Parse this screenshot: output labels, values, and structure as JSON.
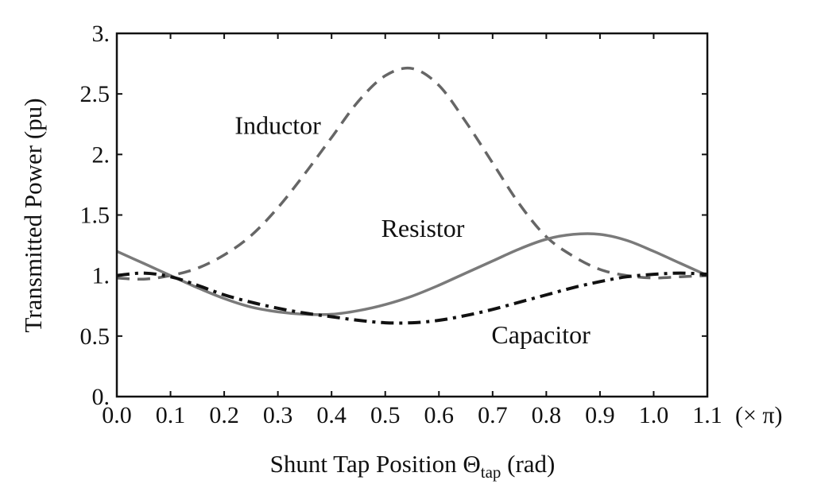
{
  "chart_data": {
    "type": "line",
    "title": "",
    "xlabel": {
      "main": "Shunt Tap Position Θ",
      "sub": "tap",
      "tail": " (rad)"
    },
    "ylabel": "Transmitted Power (pu)",
    "x_unit_label": "(× π)",
    "xlim": [
      0.0,
      1.1
    ],
    "ylim": [
      0.0,
      3.0
    ],
    "x_ticks": [
      0.0,
      0.1,
      0.2,
      0.3,
      0.4,
      0.5,
      0.6,
      0.7,
      0.8,
      0.9,
      1.0,
      1.1
    ],
    "x_tick_labels": [
      "0.0",
      "0.1",
      "0.2",
      "0.3",
      "0.4",
      "0.5",
      "0.6",
      "0.7",
      "0.8",
      "0.9",
      "1.0",
      "1.1"
    ],
    "y_ticks": [
      0.0,
      0.5,
      1.0,
      1.5,
      2.0,
      2.5,
      3.0
    ],
    "y_tick_labels": [
      "0.",
      "0.5",
      "1.",
      "1.5",
      "2.",
      "2.5",
      "3."
    ],
    "grid": false,
    "legend": "none",
    "series": [
      {
        "name": "Inductor",
        "style": "dashed",
        "color": "#666666",
        "x": [
          0.0,
          0.05,
          0.1,
          0.15,
          0.2,
          0.25,
          0.3,
          0.35,
          0.4,
          0.45,
          0.5,
          0.55,
          0.6,
          0.65,
          0.7,
          0.75,
          0.8,
          0.85,
          0.9,
          0.95,
          1.0,
          1.05,
          1.1
        ],
        "y": [
          0.98,
          0.97,
          1.0,
          1.06,
          1.17,
          1.33,
          1.56,
          1.84,
          2.14,
          2.44,
          2.65,
          2.71,
          2.57,
          2.27,
          1.93,
          1.59,
          1.32,
          1.16,
          1.05,
          1.0,
          0.98,
          0.99,
          1.0
        ]
      },
      {
        "name": "Resistor",
        "style": "solid",
        "color": "#7a7a7a",
        "x": [
          0.0,
          0.05,
          0.1,
          0.15,
          0.2,
          0.25,
          0.3,
          0.35,
          0.4,
          0.45,
          0.5,
          0.55,
          0.6,
          0.65,
          0.7,
          0.75,
          0.8,
          0.85,
          0.9,
          0.95,
          1.0,
          1.05,
          1.1
        ],
        "y": [
          1.2,
          1.1,
          1.0,
          0.9,
          0.81,
          0.74,
          0.7,
          0.68,
          0.68,
          0.71,
          0.76,
          0.83,
          0.92,
          1.02,
          1.12,
          1.22,
          1.3,
          1.34,
          1.34,
          1.29,
          1.2,
          1.1,
          1.0
        ]
      },
      {
        "name": "Capacitor",
        "style": "dash-dot",
        "color": "#111111",
        "x": [
          0.0,
          0.05,
          0.1,
          0.15,
          0.2,
          0.25,
          0.3,
          0.35,
          0.4,
          0.45,
          0.5,
          0.55,
          0.6,
          0.65,
          0.7,
          0.75,
          0.8,
          0.85,
          0.9,
          0.95,
          1.0,
          1.05,
          1.1
        ],
        "y": [
          1.0,
          1.02,
          0.99,
          0.92,
          0.84,
          0.78,
          0.73,
          0.69,
          0.66,
          0.63,
          0.61,
          0.61,
          0.63,
          0.67,
          0.72,
          0.78,
          0.84,
          0.9,
          0.95,
          0.99,
          1.01,
          1.02,
          1.01
        ]
      }
    ],
    "annotations": [
      {
        "text": "Inductor",
        "series": "Inductor",
        "x": 0.3,
        "y": 2.17
      },
      {
        "text": "Resistor",
        "series": "Resistor",
        "x": 0.57,
        "y": 1.32
      },
      {
        "text": "Capacitor",
        "series": "Capacitor",
        "x": 0.79,
        "y": 0.44
      }
    ]
  }
}
